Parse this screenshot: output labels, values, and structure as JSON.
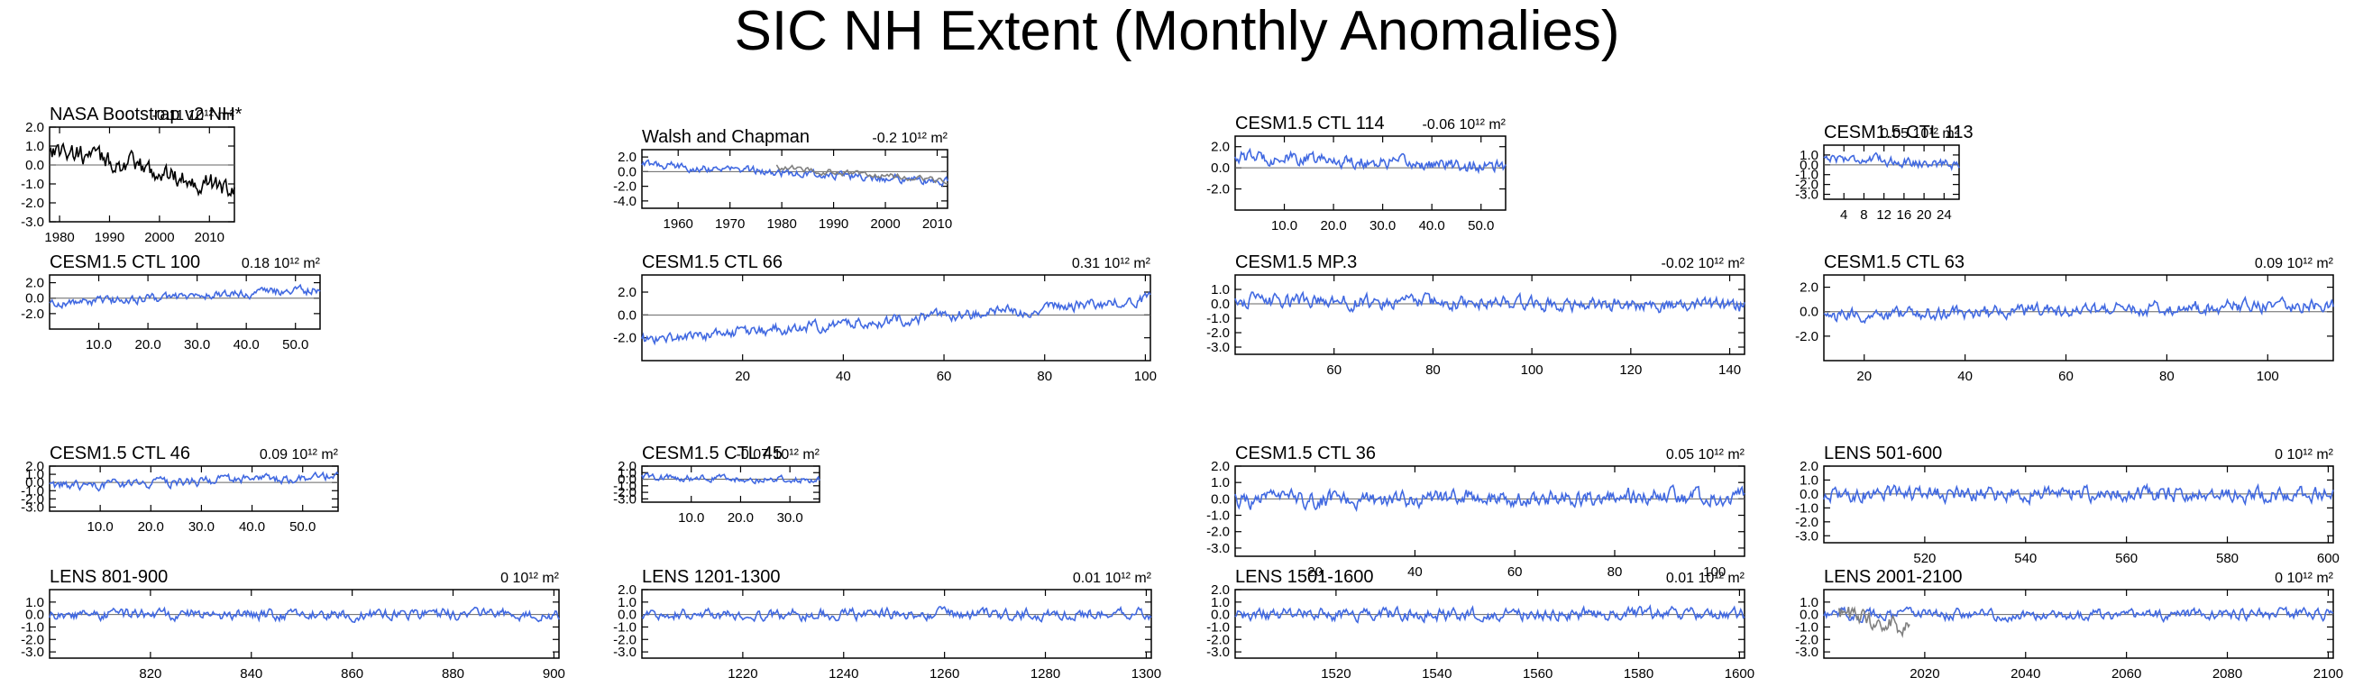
{
  "page": {
    "title": "SIC NH Extent (Monthly Anomalies)"
  },
  "colors": {
    "model": "#4169E1",
    "observed": "#000000",
    "overlay": "#808080",
    "zero_line": "#666666"
  },
  "chart_data": [
    {
      "type": "line",
      "title": "NASA Bootstrap v2 NH*",
      "trend": "-0.11 10¹² m²",
      "xlim": [
        1978,
        2015
      ],
      "xticks": [
        "1980",
        "1990",
        "2000",
        "2010"
      ],
      "ylim": [
        -3.0,
        2.0
      ],
      "yticks": [
        "2.0",
        "1.0",
        "0.0",
        "-1.0",
        "-2.0",
        "-3.0"
      ],
      "series": [
        {
          "color": "#000000",
          "start": 0.9,
          "end": -1.3,
          "noise": 0.45,
          "n": 150
        }
      ]
    },
    {
      "type": "line",
      "title": "Walsh and Chapman",
      "trend": "-0.2 10¹² m²",
      "xlim": [
        1953,
        2012
      ],
      "xticks": [
        "1960",
        "1970",
        "1980",
        "1990",
        "2000",
        "2010"
      ],
      "ylim": [
        -5.0,
        3.0
      ],
      "yticks": [
        "2.0",
        "0.0",
        "-2.0",
        "-4.0"
      ],
      "series": [
        {
          "color": "#4169E1",
          "start": 1.0,
          "end": -1.4,
          "noise": 0.45,
          "n": 240
        },
        {
          "color": "#808080",
          "start": 0.6,
          "end": -1.2,
          "noise": 0.35,
          "n": 100,
          "x_from": 1979,
          "x_to": 2012
        }
      ]
    },
    {
      "type": "line",
      "title": "CESM1.5 CTL 114",
      "trend": "-0.06 10¹² m²",
      "xlim": [
        0,
        55
      ],
      "xticks": [
        "10.0",
        "20.0",
        "30.0",
        "40.0",
        "50.0"
      ],
      "ylim": [
        -4.0,
        3.0
      ],
      "yticks": [
        "2.0",
        "0.0",
        "-2.0"
      ],
      "series": [
        {
          "color": "#4169E1",
          "start": 1.1,
          "end": 0.0,
          "noise": 0.5,
          "n": 220
        }
      ]
    },
    {
      "type": "line",
      "title": "CESM1.5 CTL 113",
      "trend": "0.05 10¹² m²",
      "xlim": [
        0,
        27
      ],
      "xticks": [
        "4",
        "8",
        "12",
        "16",
        "20",
        "24"
      ],
      "ylim": [
        -3.5,
        2.0
      ],
      "yticks": [
        "1.0",
        "0.0",
        "-1.0",
        "-2.0",
        "-3.0"
      ],
      "series": [
        {
          "color": "#4169E1",
          "start": 0.8,
          "end": 0.0,
          "noise": 0.4,
          "n": 110
        }
      ]
    },
    {
      "type": "line",
      "title": "CESM1.5 CTL 100",
      "trend": "0.18 10¹² m²",
      "xlim": [
        0,
        55
      ],
      "xticks": [
        "10.0",
        "20.0",
        "30.0",
        "40.0",
        "50.0"
      ],
      "ylim": [
        -4.0,
        3.0
      ],
      "yticks": [
        "2.0",
        "0.0",
        "-2.0"
      ],
      "series": [
        {
          "color": "#4169E1",
          "start": -0.7,
          "end": 1.1,
          "noise": 0.45,
          "n": 220
        }
      ]
    },
    {
      "type": "line",
      "title": "CESM1.5 CTL 66",
      "trend": "0.31 10¹² m²",
      "xlim": [
        0,
        101
      ],
      "xticks": [
        "20",
        "40",
        "60",
        "80",
        "100"
      ],
      "ylim": [
        -4.0,
        3.5
      ],
      "yticks": [
        "2.0",
        "0.0",
        "-2.0"
      ],
      "series": [
        {
          "color": "#4169E1",
          "start": -2.2,
          "end": 1.3,
          "noise": 0.4,
          "n": 400
        }
      ]
    },
    {
      "type": "line",
      "title": "CESM1.5 MP.3",
      "trend": "-0.02 10¹² m²",
      "xlim": [
        40,
        143
      ],
      "xticks": [
        "60",
        "80",
        "100",
        "120",
        "140"
      ],
      "ylim": [
        -3.5,
        2.0
      ],
      "yticks": [
        "1.0",
        "0.0",
        "-1.0",
        "-2.0",
        "-3.0"
      ],
      "series": [
        {
          "color": "#4169E1",
          "start": 0.2,
          "end": -0.1,
          "noise": 0.4,
          "n": 400
        }
      ]
    },
    {
      "type": "line",
      "title": "CESM1.5 CTL 63",
      "trend": "0.09 10¹² m²",
      "xlim": [
        12,
        113
      ],
      "xticks": [
        "20",
        "40",
        "60",
        "80",
        "100"
      ],
      "ylim": [
        -4.0,
        3.0
      ],
      "yticks": [
        "2.0",
        "0.0",
        "-2.0"
      ],
      "series": [
        {
          "color": "#4169E1",
          "start": -0.4,
          "end": 0.6,
          "noise": 0.45,
          "n": 400
        }
      ]
    },
    {
      "type": "line",
      "title": "CESM1.5 CTL 46",
      "trend": "0.09 10¹² m²",
      "xlim": [
        0,
        57
      ],
      "xticks": [
        "10.0",
        "20.0",
        "30.0",
        "40.0",
        "50.0"
      ],
      "ylim": [
        -3.5,
        2.0
      ],
      "yticks": [
        "2.0",
        "1.0",
        "0.0",
        "-1.0",
        "-2.0",
        "-3.0"
      ],
      "series": [
        {
          "color": "#4169E1",
          "start": -0.5,
          "end": 0.7,
          "noise": 0.45,
          "n": 230
        }
      ]
    },
    {
      "type": "line",
      "title": "CESM1.5 CTL 45",
      "trend": "-0.07 10¹² m²",
      "xlim": [
        0,
        36
      ],
      "xticks": [
        "10.0",
        "20.0",
        "30.0"
      ],
      "ylim": [
        -3.5,
        2.0
      ],
      "yticks": [
        "2.0",
        "1.0",
        "0.0",
        "-1.0",
        "-2.0",
        "-3.0"
      ],
      "series": [
        {
          "color": "#4169E1",
          "start": 0.3,
          "end": -0.1,
          "noise": 0.4,
          "n": 150
        }
      ]
    },
    {
      "type": "line",
      "title": "CESM1.5 CTL 36",
      "trend": "0.05 10¹² m²",
      "xlim": [
        4,
        106
      ],
      "xticks": [
        "20",
        "40",
        "60",
        "80",
        "100"
      ],
      "ylim": [
        -3.5,
        2.0
      ],
      "yticks": [
        "2.0",
        "1.0",
        "0.0",
        "-1.0",
        "-2.0",
        "-3.0"
      ],
      "series": [
        {
          "color": "#4169E1",
          "start": -0.1,
          "end": 0.2,
          "noise": 0.4,
          "n": 400
        }
      ]
    },
    {
      "type": "line",
      "title": "LENS 501-600",
      "trend": "0 10¹² m²",
      "xlim": [
        500,
        601
      ],
      "xticks": [
        "520",
        "540",
        "560",
        "580",
        "600"
      ],
      "ylim": [
        -3.5,
        2.0
      ],
      "yticks": [
        "2.0",
        "1.0",
        "0.0",
        "-1.0",
        "-2.0",
        "-3.0"
      ],
      "series": [
        {
          "color": "#4169E1",
          "start": 0.0,
          "end": 0.0,
          "noise": 0.45,
          "n": 400
        }
      ]
    },
    {
      "type": "line",
      "title": "LENS 801-900",
      "trend": "0 10¹² m²",
      "xlim": [
        800,
        901
      ],
      "xticks": [
        "820",
        "840",
        "860",
        "880",
        "900"
      ],
      "ylim": [
        -3.5,
        2.0
      ],
      "yticks": [
        "1.0",
        "0.0",
        "-1.0",
        "-2.0",
        "-3.0"
      ],
      "series": [
        {
          "color": "#4169E1",
          "start": 0.0,
          "end": 0.0,
          "noise": 0.35,
          "n": 400
        }
      ]
    },
    {
      "type": "line",
      "title": "LENS 1201-1300",
      "trend": "0.01 10¹² m²",
      "xlim": [
        1200,
        1301
      ],
      "xticks": [
        "1220",
        "1240",
        "1260",
        "1280",
        "1300"
      ],
      "ylim": [
        -3.5,
        2.0
      ],
      "yticks": [
        "2.0",
        "1.0",
        "0.0",
        "-1.0",
        "-2.0",
        "-3.0"
      ],
      "series": [
        {
          "color": "#4169E1",
          "start": 0.0,
          "end": 0.05,
          "noise": 0.35,
          "n": 400
        }
      ]
    },
    {
      "type": "line",
      "title": "LENS 1501-1600",
      "trend": "0.01 10¹² m²",
      "xlim": [
        1500,
        1601
      ],
      "xticks": [
        "1520",
        "1540",
        "1560",
        "1580",
        "1600"
      ],
      "ylim": [
        -3.5,
        2.0
      ],
      "yticks": [
        "2.0",
        "1.0",
        "0.0",
        "-1.0",
        "-2.0",
        "-3.0"
      ],
      "series": [
        {
          "color": "#4169E1",
          "start": 0.0,
          "end": 0.05,
          "noise": 0.4,
          "n": 400
        }
      ]
    },
    {
      "type": "line",
      "title": "LENS 2001-2100",
      "trend": "0 10¹² m²",
      "xlim": [
        2000,
        2101
      ],
      "xticks": [
        "2020",
        "2040",
        "2060",
        "2080",
        "2100"
      ],
      "ylim": [
        -3.5,
        2.0
      ],
      "yticks": [
        "1.0",
        "0.0",
        "-1.0",
        "-2.0",
        "-3.0"
      ],
      "series": [
        {
          "color": "#4169E1",
          "start": 0.0,
          "end": 0.0,
          "noise": 0.35,
          "n": 400
        },
        {
          "color": "#808080",
          "start": 0.0,
          "end": -1.0,
          "noise": 0.6,
          "n": 60,
          "x_from": 2003,
          "x_to": 2017
        }
      ]
    }
  ]
}
